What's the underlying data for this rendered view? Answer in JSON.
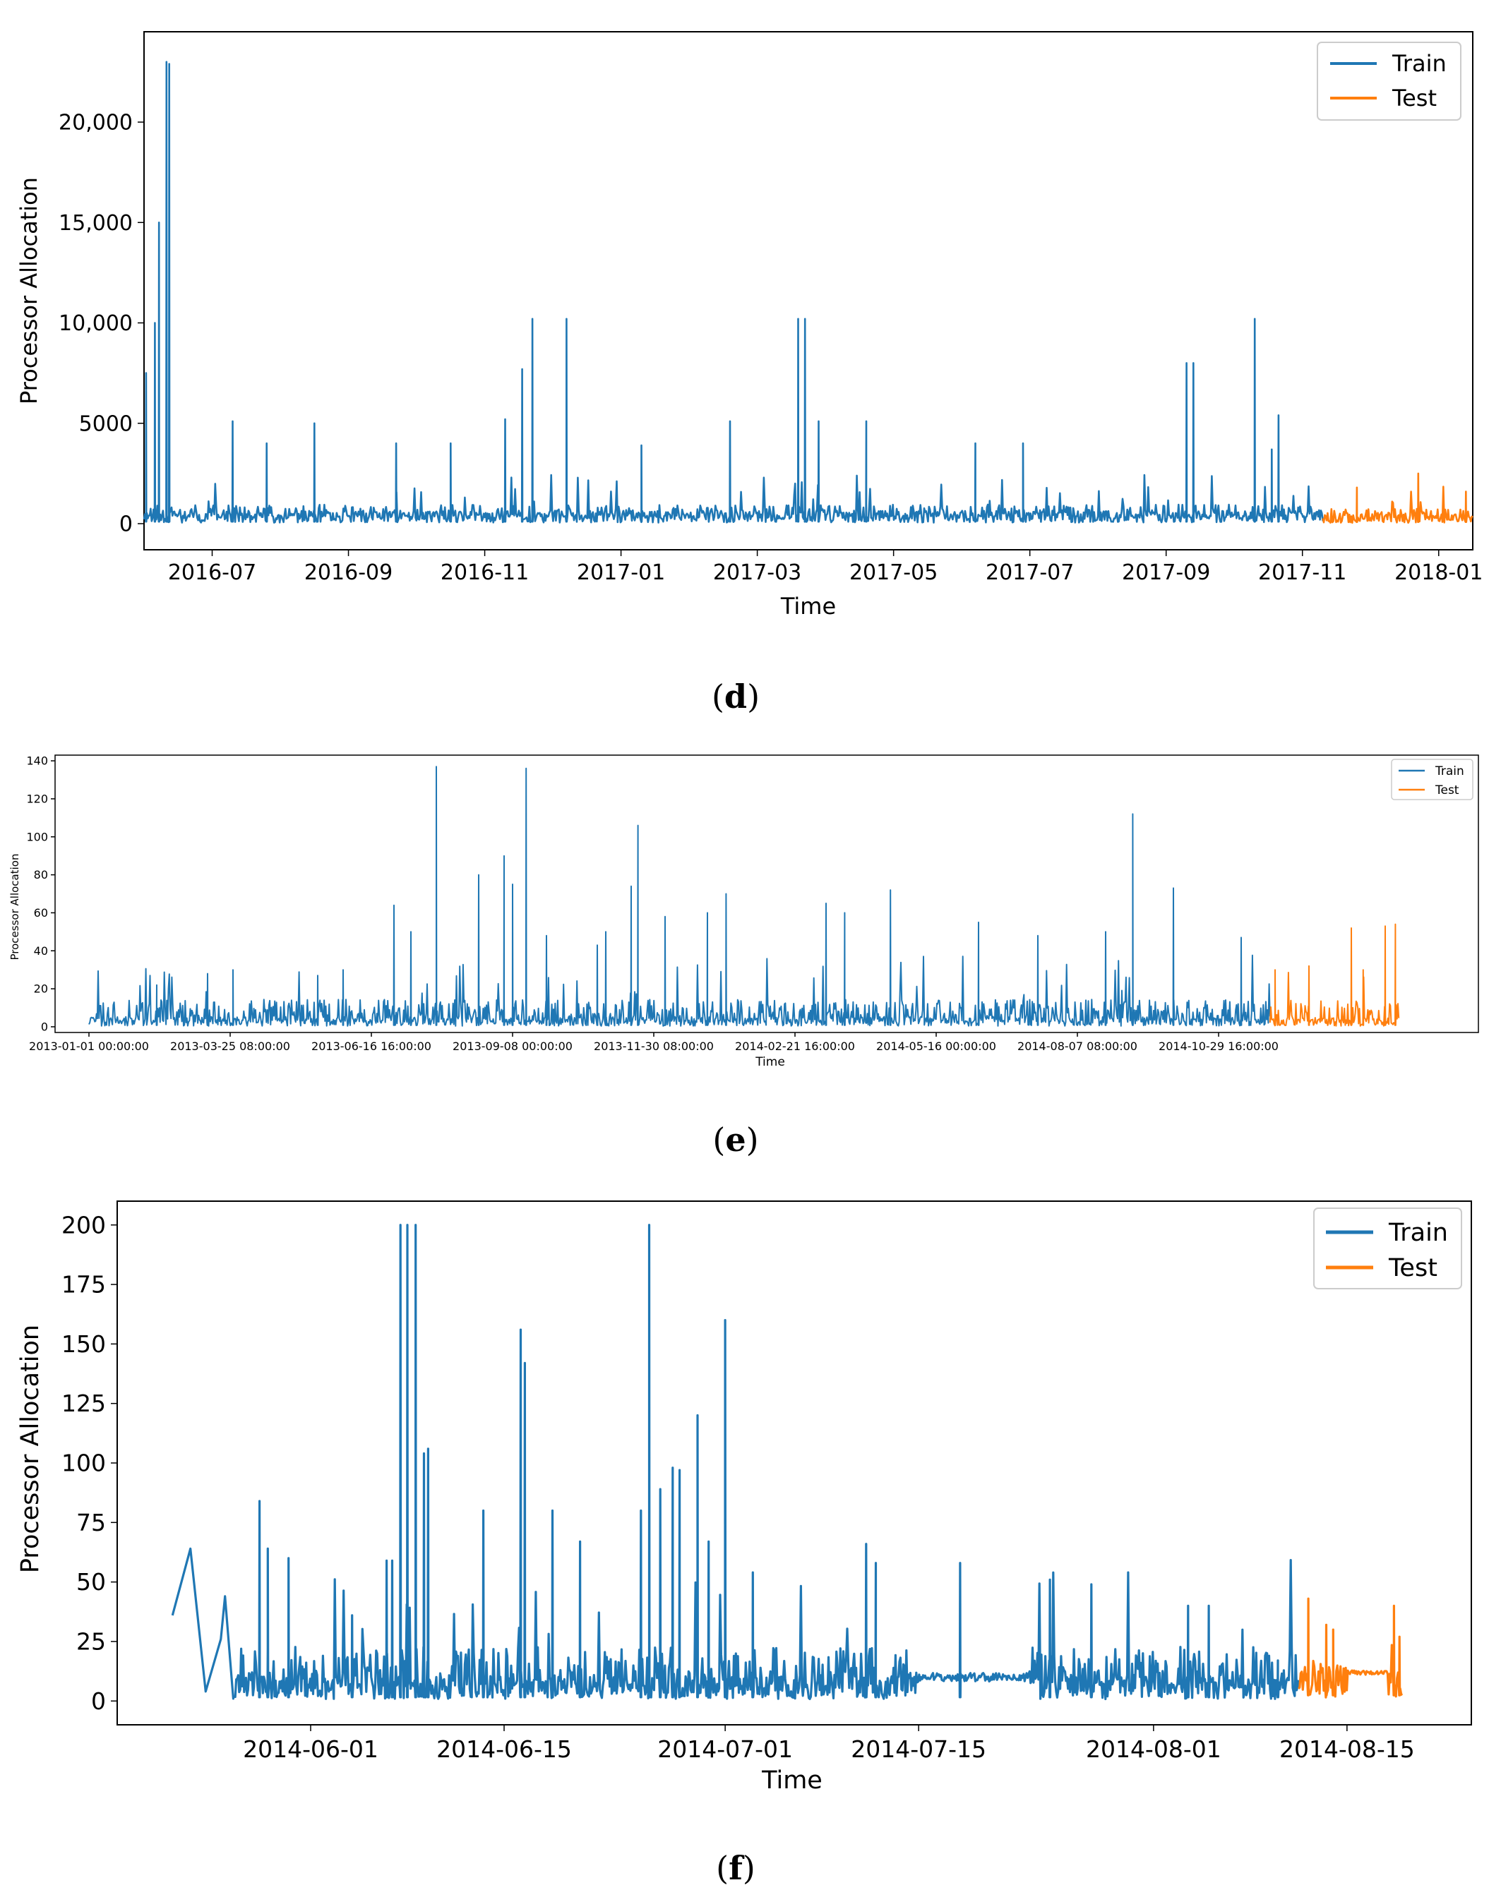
{
  "colors": {
    "train": "#1f77b4",
    "test": "#ff7f0e",
    "axis": "#000000",
    "legend_border": "#cccccc"
  },
  "chart_data": [
    {
      "type": "line",
      "caption": "d",
      "xlabel": "Time",
      "ylabel": "Processor Allocation",
      "legend": {
        "placement": "top-right",
        "entries": [
          "Train",
          "Test"
        ]
      },
      "x_unit": "months since 2016-06-01",
      "xlim": [
        0,
        19.5
      ],
      "ylim": [
        -1300,
        24500
      ],
      "yticks": [
        0,
        5000,
        10000,
        15000,
        20000
      ],
      "ytick_labels": [
        "0",
        "5000",
        "10,000",
        "15,000",
        "20,000"
      ],
      "xticks": [
        1,
        3,
        5,
        7,
        9,
        11,
        13,
        15,
        17,
        19
      ],
      "xtick_labels": [
        "2016-07",
        "2016-09",
        "2016-11",
        "2017-01",
        "2017-03",
        "2017-05",
        "2017-07",
        "2017-09",
        "2017-11",
        "2018-01"
      ],
      "series": [
        {
          "name": "Train",
          "range": [
            0.0,
            17.3
          ],
          "baseline": 500,
          "noise": 900,
          "seed": 11,
          "spikes": [
            [
              0.03,
              7500
            ],
            [
              0.16,
              10000
            ],
            [
              0.22,
              15000
            ],
            [
              0.33,
              23000
            ],
            [
              0.37,
              22900
            ],
            [
              1.3,
              5100
            ],
            [
              1.8,
              4000
            ],
            [
              2.5,
              5000
            ],
            [
              3.7,
              4000
            ],
            [
              4.5,
              4000
            ],
            [
              5.3,
              5200
            ],
            [
              5.55,
              7700
            ],
            [
              5.7,
              10200
            ],
            [
              6.2,
              10200
            ],
            [
              7.3,
              3900
            ],
            [
              8.6,
              5100
            ],
            [
              9.6,
              10200
            ],
            [
              9.7,
              10200
            ],
            [
              9.9,
              5100
            ],
            [
              10.6,
              5100
            ],
            [
              12.2,
              4000
            ],
            [
              12.9,
              4000
            ],
            [
              15.3,
              8000
            ],
            [
              15.4,
              8000
            ],
            [
              16.3,
              10200
            ],
            [
              16.55,
              3700
            ],
            [
              16.65,
              5400
            ]
          ]
        },
        {
          "name": "Test",
          "range": [
            17.3,
            19.5
          ],
          "baseline": 400,
          "noise": 700,
          "seed": 13,
          "spikes": [
            [
              17.8,
              1800
            ],
            [
              18.7,
              2500
            ],
            [
              19.4,
              1600
            ]
          ]
        }
      ]
    },
    {
      "type": "line",
      "caption": "e",
      "xlabel": "Time",
      "ylabel": "Processor Allocation",
      "legend": {
        "placement": "top-right",
        "entries": [
          "Train",
          "Test"
        ]
      },
      "x_unit": "days since 2013-01-01",
      "xlim": [
        -20,
        820
      ],
      "ylim": [
        -3,
        143
      ],
      "yticks": [
        0,
        20,
        40,
        60,
        80,
        100,
        120,
        140
      ],
      "ytick_labels": [
        "0",
        "20",
        "40",
        "60",
        "80",
        "100",
        "120",
        "140"
      ],
      "xticks": [
        0,
        83.33,
        166.67,
        250,
        333.33,
        416.67,
        500,
        583.33,
        666.67
      ],
      "xtick_labels": [
        "2013-01-01 00:00:00",
        "2013-03-25 08:00:00",
        "2013-06-16 16:00:00",
        "2013-09-08 00:00:00",
        "2013-11-30 08:00:00",
        "2014-02-21 16:00:00",
        "2014-05-16 00:00:00",
        "2014-08-07 08:00:00",
        "2014-10-29 16:00:00"
      ],
      "series": [
        {
          "name": "Train",
          "range": [
            0,
            697
          ],
          "baseline": 4,
          "noise": 14,
          "seed": 21,
          "spikes": [
            [
              40,
              22
            ],
            [
              70,
              28
            ],
            [
              85,
              30
            ],
            [
              135,
              27
            ],
            [
              150,
              30
            ],
            [
              180,
              64
            ],
            [
              190,
              50
            ],
            [
              205,
              137
            ],
            [
              230,
              80
            ],
            [
              245,
              90
            ],
            [
              250,
              75
            ],
            [
              258,
              136
            ],
            [
              270,
              48
            ],
            [
              300,
              43
            ],
            [
              305,
              50
            ],
            [
              320,
              74
            ],
            [
              324,
              106
            ],
            [
              340,
              58
            ],
            [
              365,
              60
            ],
            [
              376,
              70
            ],
            [
              435,
              65
            ],
            [
              446,
              60
            ],
            [
              473,
              72
            ],
            [
              525,
              55
            ],
            [
              560,
              48
            ],
            [
              600,
              50
            ],
            [
              616,
              112
            ],
            [
              640,
              73
            ],
            [
              680,
              47
            ]
          ]
        },
        {
          "name": "Test",
          "range": [
            697,
            773
          ],
          "baseline": 4,
          "noise": 14,
          "seed": 23,
          "spikes": [
            [
              700,
              30
            ],
            [
              720,
              32
            ],
            [
              745,
              52
            ],
            [
              752,
              30
            ],
            [
              765,
              53
            ],
            [
              771,
              54
            ]
          ]
        }
      ]
    },
    {
      "type": "line",
      "caption": "f",
      "xlabel": "Time",
      "ylabel": "Processor Allocation",
      "legend": {
        "placement": "top-right",
        "entries": [
          "Train",
          "Test"
        ]
      },
      "x_unit": "days since 2014-06-01",
      "xlim": [
        -14,
        84
      ],
      "ylim": [
        -10,
        210
      ],
      "yticks": [
        0,
        25,
        50,
        75,
        100,
        125,
        150,
        175,
        200
      ],
      "ytick_labels": [
        "0",
        "25",
        "50",
        "75",
        "100",
        "125",
        "150",
        "175",
        "200"
      ],
      "xticks": [
        0,
        14,
        30,
        44,
        61,
        75
      ],
      "xtick_labels": [
        "2014-06-01",
        "2014-06-15",
        "2014-07-01",
        "2014-07-15",
        "2014-08-01",
        "2014-08-15"
      ],
      "series": [
        {
          "name": "Train",
          "range": [
            -10,
            71.5
          ],
          "baseline": 8,
          "noise": 22,
          "seed": 31,
          "start_points": [
            [
              -10,
              36
            ],
            [
              -8.7,
              64
            ],
            [
              -7.6,
              4
            ],
            [
              -6.5,
              26
            ],
            [
              -6.2,
              44
            ],
            [
              -5.6,
              1
            ]
          ],
          "flat_segments": [
            [
              44,
              52,
              10
            ]
          ],
          "spikes": [
            [
              -3.7,
              84
            ],
            [
              -3.1,
              64
            ],
            [
              -1.6,
              60
            ],
            [
              3,
              36
            ],
            [
              5.5,
              59
            ],
            [
              5.9,
              59
            ],
            [
              6.5,
              200
            ],
            [
              7.0,
              200
            ],
            [
              7.6,
              200
            ],
            [
              8.2,
              104
            ],
            [
              8.5,
              106
            ],
            [
              12.5,
              80
            ],
            [
              15.2,
              156
            ],
            [
              15.5,
              142
            ],
            [
              17.5,
              80
            ],
            [
              19.5,
              67
            ],
            [
              23.9,
              80
            ],
            [
              24.5,
              200
            ],
            [
              25.3,
              89
            ],
            [
              26.2,
              98
            ],
            [
              26.7,
              97
            ],
            [
              28,
              120
            ],
            [
              28.8,
              67
            ],
            [
              30,
              160
            ],
            [
              32,
              54
            ],
            [
              40.2,
              66
            ],
            [
              40.9,
              58
            ],
            [
              47,
              58
            ],
            [
              53.5,
              51
            ],
            [
              56.5,
              49
            ],
            [
              63.5,
              40
            ],
            [
              65,
              40
            ],
            [
              70,
              17
            ]
          ]
        },
        {
          "name": "Test",
          "range": [
            71.5,
            79
          ],
          "baseline": 12,
          "noise": 12,
          "seed": 33,
          "flat_segments": [
            [
              75,
              78,
              12
            ]
          ],
          "spikes": [
            [
              72.2,
              43
            ],
            [
              73.5,
              32
            ],
            [
              74,
              30
            ],
            [
              78.4,
              40
            ],
            [
              78.8,
              27
            ]
          ]
        }
      ]
    }
  ]
}
